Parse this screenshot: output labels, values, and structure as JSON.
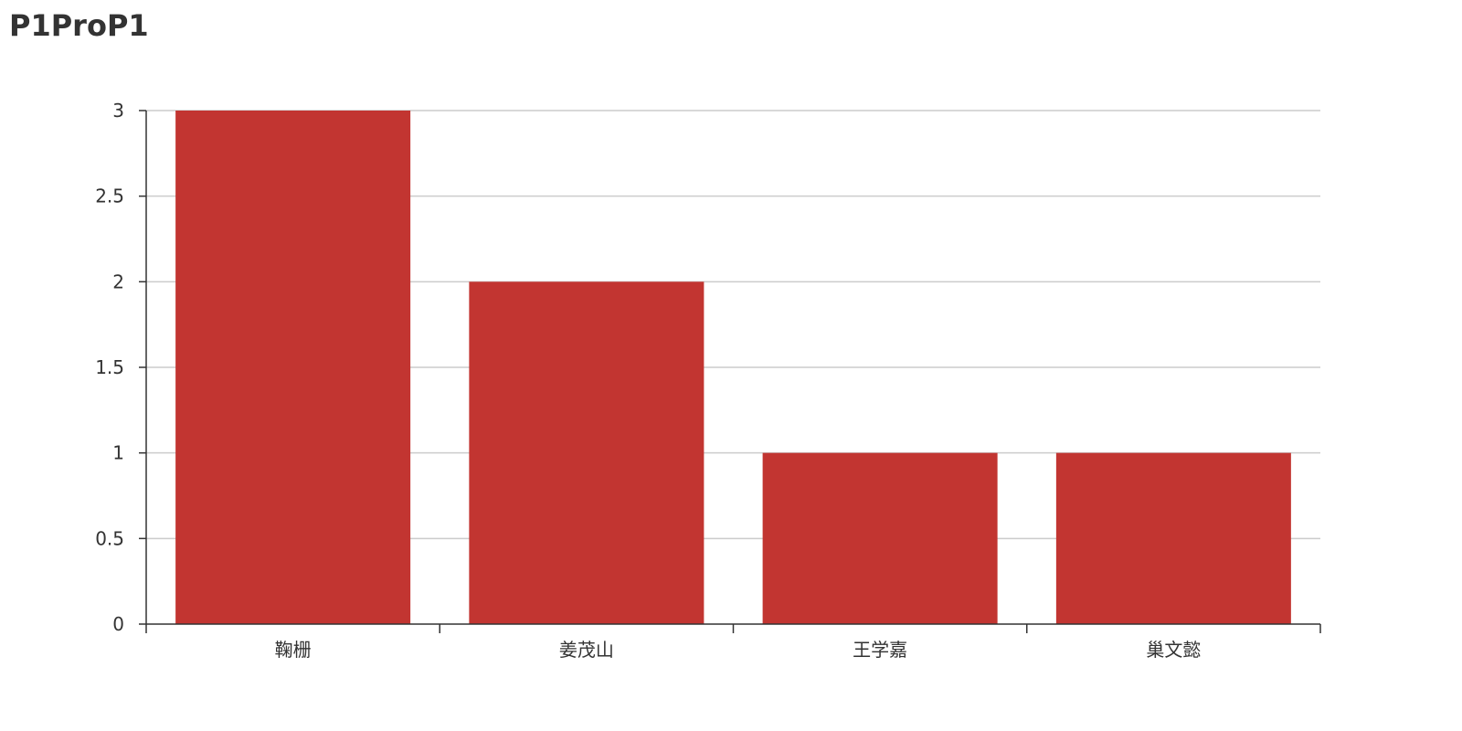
{
  "chart_data": {
    "type": "bar",
    "title": "P1ProP1",
    "xlabel": "",
    "ylabel": "",
    "categories": [
      "鞠栅",
      "姜茂山",
      "王学嘉",
      "巢文懿"
    ],
    "values": [
      3,
      2,
      1,
      1
    ],
    "ylim": [
      0,
      3
    ],
    "yticks": [
      "0",
      "0.5",
      "1",
      "1.5",
      "2",
      "2.5",
      "3"
    ],
    "grid": true,
    "legend": "none",
    "colors": {
      "bar": "#c23531",
      "grid": "#cccccc",
      "axis": "#333333",
      "text": "#333333"
    }
  }
}
